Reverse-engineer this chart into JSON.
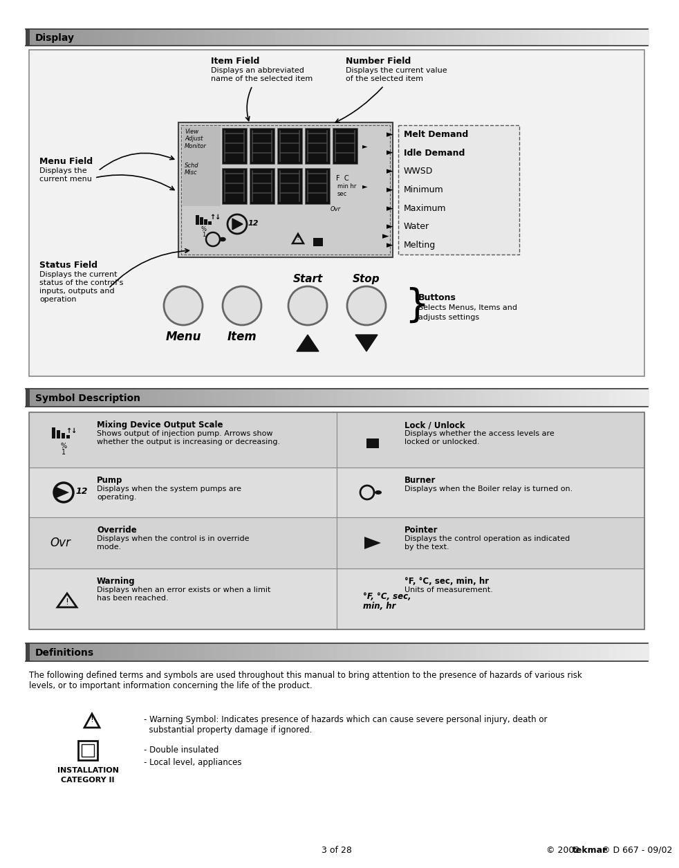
{
  "page_bg": "#ffffff",
  "section1_title": "Display",
  "section2_title": "Symbol Description",
  "section3_title": "Definitions",
  "arrow_labels": [
    "Melt Demand",
    "Idle Demand",
    "WWSD",
    "Minimum",
    "Maximum",
    "Water",
    "Melting"
  ],
  "symbol_rows": [
    {
      "left_symbol_type": "mixing",
      "left_title": "Mixing Device Output Scale",
      "left_desc": "Shows output of injection pump. Arrows show\nwhether the output is increasing or decreasing.",
      "right_symbol_type": "lock",
      "right_title": "Lock / Unlock",
      "right_desc": "Displays whether the access levels are\nlocked or unlocked."
    },
    {
      "left_symbol_type": "pump",
      "left_title": "Pump",
      "left_desc": "Displays when the system pumps are\noperating.",
      "right_symbol_type": "burner",
      "right_title": "Burner",
      "right_desc": "Displays when the Boiler relay is turned on."
    },
    {
      "left_symbol_type": "override",
      "left_title": "Override",
      "left_desc": "Displays when the control is in override\nmode.",
      "right_symbol_type": "pointer",
      "right_title": "Pointer",
      "right_desc": "Displays the control operation as indicated\nby the text."
    },
    {
      "left_symbol_type": "warning",
      "left_title": "Warning",
      "left_desc": "Displays when an error exists or when a limit\nhas been reached.",
      "right_symbol_type": "units",
      "right_title": "°F, °C, sec, min, hr",
      "right_desc": "Units of measurement.",
      "right_symbol_text1": "°F, °C, sec,",
      "right_symbol_text2": "min, hr"
    }
  ],
  "def_intro": "The following defined terms and symbols are used throughout this manual to bring attention to the presence of hazards of various risk\nlevels, or to important information concerning the life of the product.",
  "def_item1": "- Warning Symbol: Indicates presence of hazards which can cause severe personal injury, death or\n  substantial property damage if ignored.",
  "def_item2": "- Double insulated",
  "def_item3": "- Local level, appliances",
  "footer_page": "3 of 28",
  "footer_copy1": "© 2002 ",
  "footer_tekmar": "tekmar",
  "footer_copy2": "® D 667 - 09/02"
}
